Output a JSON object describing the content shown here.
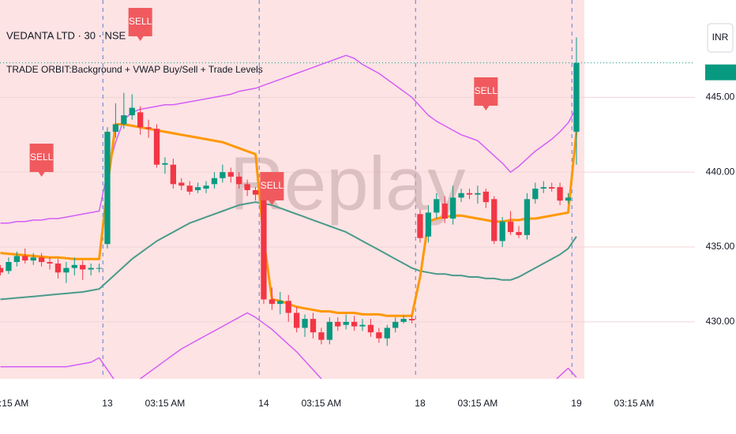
{
  "chart_data": {
    "type": "candlestick",
    "title": "VEDANTA LTD · 30 · NSE",
    "subtitle": "TRADE ORBIT:Background + VWAP Buy/Sell + Trade Levels",
    "watermark": "Replay",
    "currency": "INR",
    "up_color": "#089981",
    "down_color": "#f23645",
    "xlim": [
      -0.05,
      84.4
    ],
    "xticks": [
      {
        "value": 1,
        "label": "03:15 AM"
      },
      {
        "value": 13,
        "label": "13"
      },
      {
        "value": 20,
        "label": "03:15 AM"
      },
      {
        "value": 32,
        "label": "14"
      },
      {
        "value": 39,
        "label": "03:15 AM"
      },
      {
        "value": 51,
        "label": "18"
      },
      {
        "value": 58,
        "label": "03:15 AM"
      },
      {
        "value": 70,
        "label": "19"
      },
      {
        "value": 77,
        "label": "03:15 AM"
      }
    ],
    "ylim": [
      426.2,
      451.5
    ],
    "yticks": [
      {
        "value": 430,
        "label": "430.00"
      },
      {
        "value": 435,
        "label": "435.00"
      },
      {
        "value": 440,
        "label": "440.00"
      },
      {
        "value": 445,
        "label": "445.00"
      }
    ],
    "open": [
      433.6,
      433.4,
      434.0,
      434.4,
      434.1,
      434.3,
      434.0,
      433.9,
      433.3,
      433.6,
      433.8,
      433.5,
      433.6,
      435.2,
      442.7,
      443.2,
      443.8,
      444.0,
      443.0,
      442.9,
      440.5,
      440.5,
      439.3,
      439.1,
      438.8,
      438.9,
      439.2,
      439.6,
      440.0,
      439.7,
      439.2,
      438.8,
      439.4,
      431.5,
      431.2,
      431.4,
      430.6,
      429.6,
      430.2,
      429.3,
      428.8,
      430.0,
      429.8,
      430.0,
      429.7,
      429.8,
      429.3,
      428.9,
      429.6,
      430.0,
      430.2,
      437.2,
      435.7,
      437.3,
      437.9,
      436.9,
      438.3,
      438.6,
      438.5,
      438.7,
      438.2,
      435.4,
      436.7,
      436.0,
      435.8,
      438.2,
      438.9,
      439.0,
      439.0,
      438.1,
      442.7
    ],
    "high": [
      433.8,
      434.3,
      434.7,
      434.9,
      434.6,
      434.6,
      434.3,
      434.2,
      434.0,
      434.3,
      434.1,
      433.9,
      433.9,
      443.0,
      444.6,
      445.3,
      445.2,
      444.4,
      443.5,
      443.2,
      441.0,
      440.9,
      439.6,
      439.4,
      439.3,
      439.4,
      440.0,
      440.5,
      440.3,
      440.0,
      439.5,
      439.0,
      439.6,
      432.3,
      432.0,
      431.8,
      431.0,
      430.5,
      430.6,
      429.6,
      430.3,
      430.3,
      430.5,
      430.4,
      430.2,
      430.2,
      429.6,
      429.8,
      430.3,
      430.4,
      430.4,
      437.5,
      437.8,
      438.6,
      438.4,
      439.1,
      438.9,
      438.9,
      439.1,
      438.9,
      438.4,
      437.0,
      437.4,
      436.4,
      438.6,
      439.3,
      439.4,
      439.3,
      439.3,
      438.6,
      449.0
    ],
    "low": [
      433.1,
      433.2,
      433.7,
      433.9,
      433.8,
      433.7,
      433.5,
      432.9,
      432.6,
      433.1,
      432.8,
      433.1,
      433.3,
      434.9,
      442.3,
      442.9,
      443.5,
      442.5,
      442.3,
      440.3,
      439.9,
      438.9,
      438.8,
      438.5,
      438.6,
      438.6,
      438.9,
      439.3,
      439.3,
      438.9,
      438.4,
      438.1,
      431.2,
      430.8,
      430.5,
      430.0,
      429.3,
      429.0,
      428.9,
      428.5,
      428.5,
      429.4,
      429.5,
      429.4,
      429.4,
      429.0,
      428.6,
      428.4,
      429.3,
      429.9,
      429.9,
      435.3,
      435.3,
      436.9,
      436.6,
      436.5,
      438.0,
      438.2,
      437.9,
      437.6,
      435.2,
      435.0,
      435.8,
      435.6,
      435.5,
      437.9,
      438.6,
      438.7,
      437.8,
      437.9,
      440.5
    ],
    "close": [
      433.3,
      434.0,
      434.4,
      434.1,
      434.3,
      434.0,
      433.9,
      433.3,
      433.6,
      433.8,
      433.5,
      433.6,
      433.6,
      442.7,
      443.2,
      443.8,
      444.3,
      443.0,
      442.9,
      440.5,
      440.6,
      439.2,
      439.1,
      438.7,
      439.0,
      439.1,
      439.6,
      440.0,
      439.7,
      439.2,
      438.8,
      438.5,
      431.5,
      431.2,
      431.4,
      430.6,
      429.6,
      430.2,
      429.3,
      428.8,
      430.0,
      429.7,
      430.0,
      429.7,
      429.8,
      429.3,
      428.9,
      429.6,
      430.0,
      430.2,
      430.1,
      435.6,
      437.3,
      438.2,
      436.9,
      438.3,
      438.6,
      438.5,
      438.6,
      438.0,
      435.4,
      436.7,
      436.0,
      435.8,
      438.2,
      438.9,
      439.0,
      438.9,
      438.1,
      438.3,
      447.3
    ],
    "series": [
      {
        "color": "#d45ef7",
        "width": 1.5,
        "values": [
          436.6,
          436.6,
          436.7,
          436.7,
          436.8,
          436.8,
          436.9,
          436.9,
          437.0,
          437.1,
          437.2,
          437.3,
          437.4,
          440.0,
          442.0,
          443.5,
          444.0,
          444.2,
          444.3,
          444.4,
          444.5,
          444.5,
          444.6,
          444.7,
          444.8,
          444.9,
          445.0,
          445.1,
          445.2,
          445.4,
          445.5,
          445.6,
          445.8,
          446.0,
          446.2,
          446.4,
          446.6,
          446.8,
          447.0,
          447.2,
          447.4,
          447.6,
          447.8,
          447.6,
          447.2,
          446.9,
          446.6,
          446.2,
          445.8,
          445.4,
          445.0,
          444.4,
          443.8,
          443.4,
          443.1,
          442.8,
          442.5,
          442.3,
          442.1,
          441.6,
          441.1,
          440.6,
          440.0,
          440.4,
          440.9,
          441.4,
          441.8,
          442.2,
          442.7,
          443.3,
          444.3
        ]
      },
      {
        "color": "#4a9a8a",
        "width": 2,
        "values": [
          431.5,
          431.55,
          431.6,
          431.65,
          431.7,
          431.75,
          431.8,
          431.85,
          431.9,
          431.95,
          432.0,
          432.1,
          432.2,
          432.7,
          433.2,
          433.7,
          434.2,
          434.6,
          435.0,
          435.4,
          435.7,
          436.0,
          436.3,
          436.6,
          436.8,
          437.0,
          437.2,
          437.4,
          437.6,
          437.8,
          437.9,
          438.0,
          437.9,
          437.8,
          437.6,
          437.4,
          437.2,
          437.0,
          436.8,
          436.6,
          436.4,
          436.2,
          436.0,
          435.7,
          435.4,
          435.1,
          434.8,
          434.5,
          434.2,
          433.9,
          433.6,
          433.4,
          433.3,
          433.2,
          433.2,
          433.1,
          433.1,
          433.0,
          433.0,
          432.9,
          432.9,
          432.8,
          432.8,
          433.0,
          433.3,
          433.6,
          433.9,
          434.2,
          434.5,
          434.9,
          435.7
        ]
      },
      {
        "color": "#d45ef7",
        "width": 1.5,
        "values": [
          427.0,
          427.0,
          427.0,
          427.0,
          427.0,
          427.0,
          427.0,
          427.0,
          427.0,
          427.1,
          427.2,
          427.3,
          427.6,
          426.8,
          426.0,
          425.5,
          425.8,
          426.2,
          426.6,
          427.0,
          427.4,
          427.8,
          428.2,
          428.5,
          428.8,
          429.1,
          429.4,
          429.7,
          430.0,
          430.3,
          430.6,
          430.3,
          429.9,
          429.5,
          429.0,
          428.5,
          428.0,
          427.4,
          426.8,
          426.2,
          425.6,
          425.2,
          425.0,
          424.9,
          424.8,
          424.8,
          424.9,
          425.0,
          425.1,
          425.0,
          424.8,
          424.6,
          424.5,
          424.4,
          424.4,
          424.3,
          424.3,
          424.3,
          424.4,
          424.5,
          424.6,
          424.8,
          425.0,
          425.2,
          425.4,
          425.6,
          425.7,
          425.9,
          426.4,
          426.9,
          426.3
        ]
      },
      {
        "color": "#ff9800",
        "width": 3,
        "values": [
          434.6,
          434.55,
          434.5,
          434.45,
          434.4,
          434.35,
          434.3,
          434.3,
          434.25,
          434.2,
          434.2,
          434.2,
          434.2,
          439.0,
          443.2,
          443.2,
          443.1,
          443.0,
          442.9,
          442.8,
          442.7,
          442.6,
          442.5,
          442.4,
          442.3,
          442.2,
          442.1,
          442.0,
          441.8,
          441.6,
          441.4,
          441.2,
          435.5,
          431.5,
          431.4,
          431.2,
          431.0,
          430.9,
          430.8,
          430.7,
          430.7,
          430.6,
          430.6,
          430.6,
          430.5,
          430.5,
          430.5,
          430.4,
          430.4,
          430.4,
          430.4,
          433.0,
          436.7,
          436.9,
          437.0,
          437.1,
          437.1,
          437.0,
          436.9,
          436.8,
          436.7,
          436.7,
          436.8,
          436.8,
          436.9,
          436.9,
          437.0,
          437.1,
          437.2,
          437.3,
          442.7
        ]
      }
    ],
    "signals": [
      {
        "index": 17,
        "label": "SELL"
      },
      {
        "index": 5,
        "label": "SELL"
      },
      {
        "index": 33,
        "label": "SELL"
      },
      {
        "index": 59,
        "label": "SELL"
      }
    ]
  }
}
